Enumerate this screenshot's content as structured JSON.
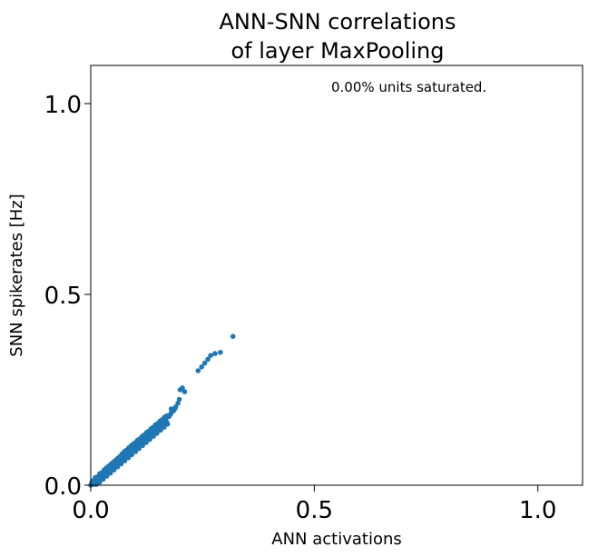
{
  "chart_data": {
    "type": "scatter",
    "title": [
      "ANN-SNN correlations",
      "of layer MaxPooling"
    ],
    "xlabel": "ANN activations",
    "ylabel": "SNN spikerates [Hz]",
    "xlim": [
      0,
      1.1
    ],
    "ylim": [
      0,
      1.1
    ],
    "xticks": [
      {
        "value": 0.0,
        "label": "0.0"
      },
      {
        "value": 0.5,
        "label": "0.5"
      },
      {
        "value": 1.0,
        "label": "1.0"
      }
    ],
    "yticks": [
      {
        "value": 0.0,
        "label": "0.0"
      },
      {
        "value": 0.5,
        "label": "0.5"
      },
      {
        "value": 1.0,
        "label": "1.0"
      }
    ],
    "annotation": "0.00% units saturated.",
    "grid": false,
    "color": "#1f77b4",
    "series": [
      {
        "points": [
          [
            0.005,
            0.005
          ],
          [
            0.008,
            0.01
          ],
          [
            0.01,
            0.005
          ],
          [
            0.012,
            0.015
          ],
          [
            0.015,
            0.01
          ],
          [
            0.018,
            0.02
          ],
          [
            0.02,
            0.015
          ],
          [
            0.022,
            0.025
          ],
          [
            0.025,
            0.02
          ],
          [
            0.028,
            0.03
          ],
          [
            0.03,
            0.025
          ],
          [
            0.032,
            0.035
          ],
          [
            0.035,
            0.03
          ],
          [
            0.038,
            0.04
          ],
          [
            0.04,
            0.035
          ],
          [
            0.042,
            0.045
          ],
          [
            0.045,
            0.04
          ],
          [
            0.048,
            0.05
          ],
          [
            0.05,
            0.045
          ],
          [
            0.052,
            0.055
          ],
          [
            0.055,
            0.05
          ],
          [
            0.058,
            0.06
          ],
          [
            0.06,
            0.055
          ],
          [
            0.062,
            0.065
          ],
          [
            0.065,
            0.06
          ],
          [
            0.068,
            0.07
          ],
          [
            0.07,
            0.065
          ],
          [
            0.072,
            0.075
          ],
          [
            0.075,
            0.07
          ],
          [
            0.078,
            0.08
          ],
          [
            0.08,
            0.075
          ],
          [
            0.082,
            0.085
          ],
          [
            0.085,
            0.08
          ],
          [
            0.088,
            0.09
          ],
          [
            0.09,
            0.085
          ],
          [
            0.092,
            0.095
          ],
          [
            0.095,
            0.09
          ],
          [
            0.098,
            0.1
          ],
          [
            0.1,
            0.095
          ],
          [
            0.102,
            0.105
          ],
          [
            0.105,
            0.1
          ],
          [
            0.108,
            0.11
          ],
          [
            0.11,
            0.105
          ],
          [
            0.112,
            0.115
          ],
          [
            0.115,
            0.11
          ],
          [
            0.118,
            0.12
          ],
          [
            0.12,
            0.115
          ],
          [
            0.122,
            0.125
          ],
          [
            0.125,
            0.12
          ],
          [
            0.128,
            0.13
          ],
          [
            0.13,
            0.125
          ],
          [
            0.132,
            0.135
          ],
          [
            0.135,
            0.13
          ],
          [
            0.138,
            0.14
          ],
          [
            0.14,
            0.135
          ],
          [
            0.143,
            0.145
          ],
          [
            0.145,
            0.14
          ],
          [
            0.148,
            0.15
          ],
          [
            0.15,
            0.145
          ],
          [
            0.153,
            0.155
          ],
          [
            0.155,
            0.15
          ],
          [
            0.158,
            0.16
          ],
          [
            0.16,
            0.155
          ],
          [
            0.163,
            0.165
          ],
          [
            0.165,
            0.16
          ],
          [
            0.168,
            0.17
          ],
          [
            0.17,
            0.165
          ],
          [
            0.175,
            0.18
          ],
          [
            0.178,
            0.185
          ],
          [
            0.18,
            0.19
          ],
          [
            0.185,
            0.195
          ],
          [
            0.188,
            0.2
          ],
          [
            0.19,
            0.205
          ],
          [
            0.195,
            0.215
          ],
          [
            0.198,
            0.225
          ],
          [
            0.2,
            0.25
          ],
          [
            0.205,
            0.255
          ],
          [
            0.21,
            0.245
          ],
          [
            0.24,
            0.3
          ],
          [
            0.248,
            0.31
          ],
          [
            0.255,
            0.32
          ],
          [
            0.262,
            0.33
          ],
          [
            0.268,
            0.34
          ],
          [
            0.278,
            0.345
          ],
          [
            0.29,
            0.348
          ],
          [
            0.318,
            0.39
          ],
          [
            0.005,
            0.012
          ],
          [
            0.01,
            0.02
          ],
          [
            0.015,
            0.022
          ],
          [
            0.02,
            0.03
          ],
          [
            0.025,
            0.033
          ],
          [
            0.03,
            0.04
          ],
          [
            0.035,
            0.045
          ],
          [
            0.04,
            0.05
          ],
          [
            0.045,
            0.055
          ],
          [
            0.05,
            0.06
          ],
          [
            0.055,
            0.065
          ],
          [
            0.06,
            0.07
          ],
          [
            0.065,
            0.075
          ],
          [
            0.07,
            0.082
          ],
          [
            0.075,
            0.088
          ],
          [
            0.08,
            0.092
          ],
          [
            0.085,
            0.098
          ],
          [
            0.09,
            0.103
          ],
          [
            0.095,
            0.108
          ],
          [
            0.1,
            0.112
          ],
          [
            0.105,
            0.118
          ],
          [
            0.11,
            0.122
          ],
          [
            0.115,
            0.128
          ],
          [
            0.12,
            0.132
          ],
          [
            0.125,
            0.138
          ],
          [
            0.13,
            0.142
          ],
          [
            0.135,
            0.148
          ],
          [
            0.14,
            0.152
          ],
          [
            0.145,
            0.158
          ],
          [
            0.15,
            0.162
          ],
          [
            0.155,
            0.168
          ],
          [
            0.16,
            0.172
          ],
          [
            0.165,
            0.178
          ],
          [
            0.17,
            0.182
          ],
          [
            0.18,
            0.2
          ],
          [
            0.012,
            0.002
          ],
          [
            0.02,
            0.008
          ],
          [
            0.028,
            0.016
          ],
          [
            0.036,
            0.024
          ],
          [
            0.044,
            0.032
          ],
          [
            0.052,
            0.04
          ],
          [
            0.06,
            0.048
          ],
          [
            0.068,
            0.056
          ],
          [
            0.076,
            0.064
          ],
          [
            0.084,
            0.072
          ],
          [
            0.092,
            0.08
          ],
          [
            0.1,
            0.088
          ],
          [
            0.108,
            0.096
          ],
          [
            0.116,
            0.104
          ],
          [
            0.124,
            0.112
          ],
          [
            0.132,
            0.12
          ],
          [
            0.14,
            0.128
          ],
          [
            0.148,
            0.136
          ],
          [
            0.156,
            0.144
          ],
          [
            0.164,
            0.152
          ],
          [
            0.172,
            0.16
          ],
          [
            0.0,
            0.0
          ],
          [
            0.002,
            0.004
          ],
          [
            0.004,
            0.002
          ],
          [
            0.003,
            0.008
          ]
        ]
      }
    ]
  }
}
